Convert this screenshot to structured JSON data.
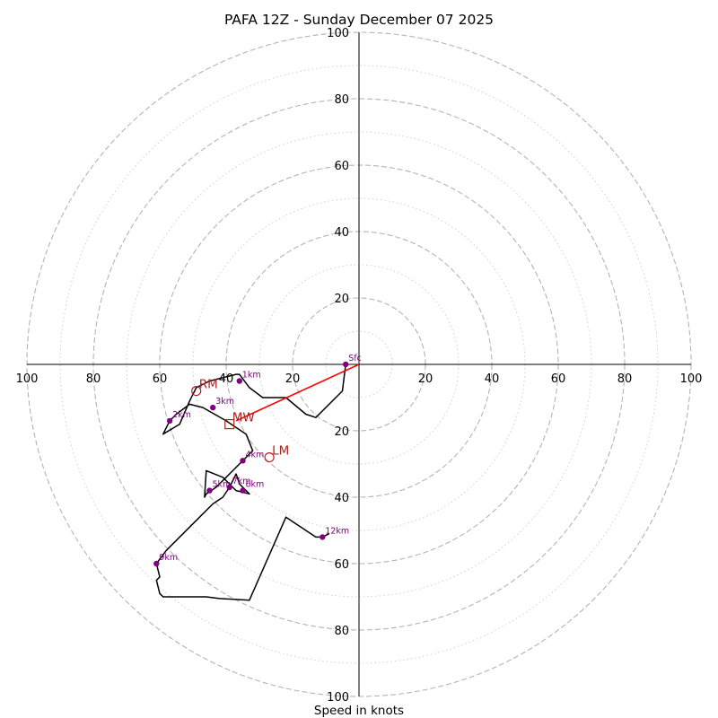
{
  "chart_data": {
    "type": "hodograph",
    "title": "PAFA 12Z - Sunday December 07 2025",
    "xlabel": "Speed in knots",
    "range": [
      -100,
      100
    ],
    "ring_major": [
      20,
      40,
      60,
      80,
      100
    ],
    "ring_minor": [
      10,
      30,
      50,
      70,
      90
    ],
    "axis_ticks": [
      {
        "value": -100,
        "label": "100"
      },
      {
        "value": -80,
        "label": "80"
      },
      {
        "value": -60,
        "label": "60"
      },
      {
        "value": -40,
        "label": "40"
      },
      {
        "value": -20,
        "label": "20"
      },
      {
        "value": 20,
        "label": "20"
      },
      {
        "value": 40,
        "label": "40"
      },
      {
        "value": 60,
        "label": "60"
      },
      {
        "value": 80,
        "label": "80"
      },
      {
        "value": 100,
        "label": "100"
      }
    ],
    "colors": {
      "trace": "#000000",
      "points": "#800080",
      "shear": "#ff0000",
      "storm": "#b22222",
      "grid": "#b4b4b4"
    },
    "trace": [
      [
        -4,
        0
      ],
      [
        -5,
        -8
      ],
      [
        -13,
        -16
      ],
      [
        -16,
        -15
      ],
      [
        -22,
        -10
      ],
      [
        -29,
        -10
      ],
      [
        -33,
        -7
      ],
      [
        -36,
        -3
      ],
      [
        -37,
        -3
      ],
      [
        -41,
        -4
      ],
      [
        -45,
        -5
      ],
      [
        -49,
        -7
      ],
      [
        -51,
        -11
      ],
      [
        -54,
        -18
      ],
      [
        -59,
        -21
      ],
      [
        -57,
        -17
      ],
      [
        -55,
        -15
      ],
      [
        -51,
        -12
      ],
      [
        -47,
        -13
      ],
      [
        -40,
        -17
      ],
      [
        -34,
        -21
      ],
      [
        -32,
        -26
      ],
      [
        -35,
        -29
      ],
      [
        -38,
        -32
      ],
      [
        -40,
        -34
      ],
      [
        -43,
        -37
      ],
      [
        -46,
        -39
      ],
      [
        -46,
        -39
      ],
      [
        -46.5,
        -40
      ],
      [
        -46,
        -32
      ],
      [
        -41,
        -34
      ],
      [
        -37,
        -38
      ],
      [
        -33,
        -39
      ],
      [
        -36,
        -36
      ],
      [
        -37,
        -33
      ],
      [
        -37,
        -33
      ],
      [
        -38,
        -35
      ],
      [
        -39,
        -37
      ],
      [
        -41,
        -40
      ],
      [
        -44,
        -42
      ],
      [
        -48,
        -46
      ],
      [
        -53,
        -51
      ],
      [
        -58,
        -56
      ],
      [
        -61,
        -60
      ],
      [
        -60,
        -64
      ],
      [
        -61,
        -65
      ],
      [
        -60,
        -69
      ],
      [
        -59,
        -70
      ],
      [
        -59,
        -70
      ],
      [
        -47,
        -70
      ],
      [
        -46,
        -70
      ],
      [
        -42,
        -70.5
      ],
      [
        -33,
        -71
      ],
      [
        -22,
        -46
      ],
      [
        -13,
        -52
      ],
      [
        -11,
        -52
      ],
      [
        -9,
        -51
      ]
    ],
    "height_markers": [
      {
        "label": "Sfc",
        "u": -4,
        "v": 0
      },
      {
        "label": "1km",
        "u": -36,
        "v": -5
      },
      {
        "label": "3km",
        "u": -44,
        "v": -13
      },
      {
        "label": "2km",
        "u": -57,
        "v": -17
      },
      {
        "label": "4km",
        "u": -35,
        "v": -29
      },
      {
        "label": "5km",
        "u": -45,
        "v": -38
      },
      {
        "label": "7km",
        "u": -39,
        "v": -37
      },
      {
        "label": "6km",
        "u": -35,
        "v": -38
      },
      {
        "label": "12km",
        "u": -11,
        "v": -52
      },
      {
        "label": "9km",
        "u": -61,
        "v": -60
      }
    ],
    "shear_vector": {
      "from": [
        0,
        0
      ],
      "to": [
        -37,
        -17
      ]
    },
    "storm_motions": [
      {
        "label": "RM",
        "u": -49,
        "v": -8,
        "marker": "circle"
      },
      {
        "label": "MW",
        "u": -39,
        "v": -18,
        "marker": "square"
      },
      {
        "label": "LM",
        "u": -27,
        "v": -28,
        "marker": "circle"
      }
    ]
  }
}
